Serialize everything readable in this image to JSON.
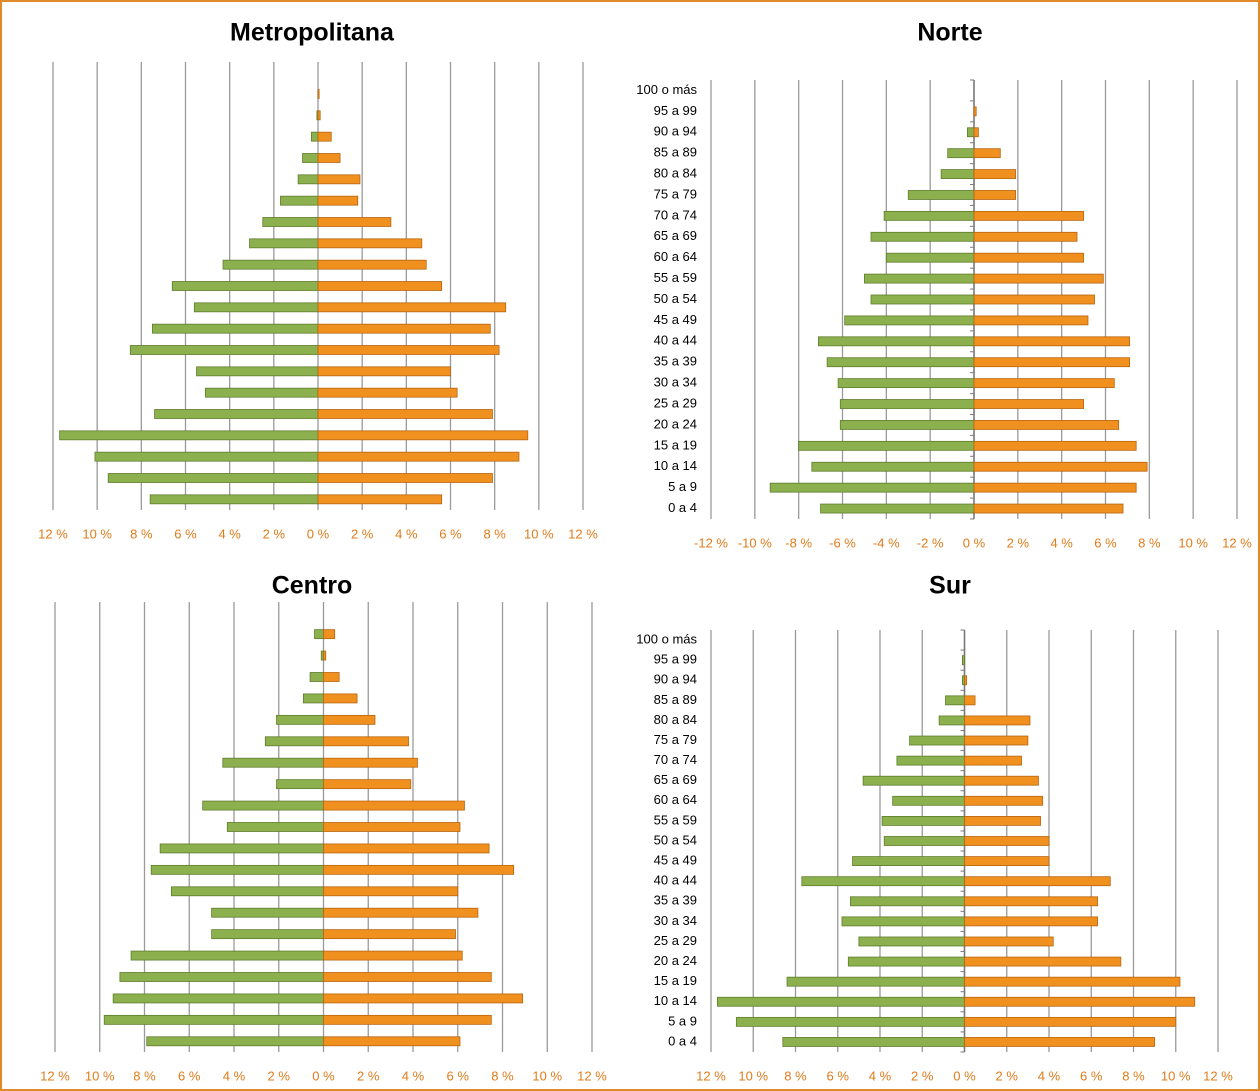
{
  "chart_data": [
    {
      "type": "bar",
      "title": "Metropolitana",
      "categories": [
        null,
        null,
        null,
        null,
        null,
        null,
        null,
        null,
        null,
        null,
        null,
        null,
        null,
        null,
        null,
        null,
        null,
        null,
        null,
        null,
        null
      ],
      "series": [
        {
          "color": "#8db04f",
          "values": [
            -7.6,
            -9.5,
            -10.1,
            -11.7,
            -7.4,
            -5.1,
            -5.5,
            -8.5,
            -7.5,
            -5.6,
            -6.6,
            -4.3,
            -3.1,
            -2.5,
            -1.7,
            -0.9,
            -0.7,
            -0.3,
            -0.05,
            0,
            0
          ]
        },
        {
          "color": "#f0901f",
          "values": [
            5.6,
            7.9,
            9.1,
            9.5,
            7.9,
            6.3,
            6.0,
            8.2,
            7.8,
            8.5,
            5.6,
            4.9,
            4.7,
            3.3,
            1.8,
            1.9,
            1.0,
            0.6,
            0.1,
            0.05,
            0
          ]
        }
      ],
      "xlim": [
        -12,
        12
      ],
      "xticks": [
        {
          "value": -12,
          "label": "12 %"
        },
        {
          "value": -10,
          "label": "10 %"
        },
        {
          "value": -8,
          "label": "8 %"
        },
        {
          "value": -6,
          "label": "6 %"
        },
        {
          "value": -4,
          "label": "4 %"
        },
        {
          "value": -2,
          "label": "2 %"
        },
        {
          "value": 0,
          "label": "0 %"
        },
        {
          "value": 2,
          "label": "2 %"
        },
        {
          "value": 4,
          "label": "4 %"
        },
        {
          "value": 6,
          "label": "6 %"
        },
        {
          "value": 8,
          "label": "8 %"
        },
        {
          "value": 10,
          "label": "10 %"
        },
        {
          "value": 12,
          "label": "12 %"
        }
      ],
      "grid": true
    },
    {
      "type": "bar",
      "title": "Norte",
      "categories": [
        "0 a 4",
        "5 a 9",
        "10 a 14",
        "15 a 19",
        "20 a 24",
        "25 a 29",
        "30 a 34",
        "35 a 39",
        "40 a 44",
        "45 a 49",
        "50 a 54",
        "55 a 59",
        "60 a 64",
        "65 a 69",
        "70 a 74",
        "75 a 79",
        "80 a 84",
        "85 a 89",
        "90 a 94",
        "95 a 99",
        "100 o más"
      ],
      "series": [
        {
          "color": "#8db04f",
          "values": [
            -7.0,
            -9.3,
            -7.4,
            -8.0,
            -6.1,
            -6.1,
            -6.2,
            -6.7,
            -7.1,
            -5.9,
            -4.7,
            -5.0,
            -4.0,
            -4.7,
            -4.1,
            -3.0,
            -1.5,
            -1.2,
            -0.3,
            0,
            0
          ]
        },
        {
          "color": "#f0901f",
          "values": [
            6.8,
            7.4,
            7.9,
            7.4,
            6.6,
            5.0,
            6.4,
            7.1,
            7.1,
            5.2,
            5.5,
            5.9,
            5.0,
            4.7,
            5.0,
            1.9,
            1.9,
            1.2,
            0.2,
            0.1,
            0
          ]
        }
      ],
      "xlim": [
        -12,
        12
      ],
      "xticks": [
        {
          "value": -12,
          "label": "-12 %"
        },
        {
          "value": -10,
          "label": "-10 %"
        },
        {
          "value": -8,
          "label": "-8 %"
        },
        {
          "value": -6,
          "label": "-6 %"
        },
        {
          "value": -4,
          "label": "-4 %"
        },
        {
          "value": -2,
          "label": "-2 %"
        },
        {
          "value": 0,
          "label": "0 %"
        },
        {
          "value": 2,
          "label": "2 %"
        },
        {
          "value": 4,
          "label": "4 %"
        },
        {
          "value": 6,
          "label": "6 %"
        },
        {
          "value": 8,
          "label": "8 %"
        },
        {
          "value": 10,
          "label": "10 %"
        },
        {
          "value": 12,
          "label": "12 %"
        }
      ],
      "grid": true
    },
    {
      "type": "bar",
      "title": "Centro",
      "categories": [
        null,
        null,
        null,
        null,
        null,
        null,
        null,
        null,
        null,
        null,
        null,
        null,
        null,
        null,
        null,
        null,
        null,
        null,
        null,
        null,
        null
      ],
      "series": [
        {
          "color": "#8db04f",
          "values": [
            -7.9,
            -9.8,
            -9.4,
            -9.1,
            -8.6,
            -5.0,
            -5.0,
            -6.8,
            -7.7,
            -7.3,
            -4.3,
            -5.4,
            -2.1,
            -4.5,
            -2.6,
            -2.1,
            -0.9,
            -0.6,
            -0.1,
            -0.4,
            0
          ]
        },
        {
          "color": "#f0901f",
          "values": [
            6.1,
            7.5,
            8.9,
            7.5,
            6.2,
            5.9,
            6.9,
            6.0,
            8.5,
            7.4,
            6.1,
            6.3,
            3.9,
            4.2,
            3.8,
            2.3,
            1.5,
            0.7,
            0.1,
            0.5,
            0
          ]
        }
      ],
      "xlim": [
        -12,
        12
      ],
      "xticks": [
        {
          "value": -12,
          "label": "12 %"
        },
        {
          "value": -10,
          "label": "10 %"
        },
        {
          "value": -8,
          "label": "8 %"
        },
        {
          "value": -6,
          "label": "6 %"
        },
        {
          "value": -4,
          "label": "4 %"
        },
        {
          "value": -2,
          "label": "2 %"
        },
        {
          "value": 0,
          "label": "0 %"
        },
        {
          "value": 2,
          "label": "2 %"
        },
        {
          "value": 4,
          "label": "4 %"
        },
        {
          "value": 6,
          "label": "6 %"
        },
        {
          "value": 8,
          "label": "8 %"
        },
        {
          "value": 10,
          "label": "10 %"
        },
        {
          "value": 12,
          "label": "12 %"
        }
      ],
      "grid": true
    },
    {
      "type": "bar",
      "title": "Sur",
      "categories": [
        "0 a 4",
        "5 a 9",
        "10 a 14",
        "15 a 19",
        "20 a 24",
        "25 a 29",
        "30 a 34",
        "35 a 39",
        "40 a 44",
        "45 a 49",
        "50 a 54",
        "55 a 59",
        "60 a 64",
        "65 a 69",
        "70 a 74",
        "75 a 79",
        "80 a 84",
        "85 a 89",
        "90 a 94",
        "95 a 99",
        "100 o más"
      ],
      "series": [
        {
          "color": "#8db04f",
          "values": [
            -8.6,
            -10.8,
            -11.7,
            -8.4,
            -5.5,
            -5.0,
            -5.8,
            -5.4,
            -7.7,
            -5.3,
            -3.8,
            -3.9,
            -3.4,
            -4.8,
            -3.2,
            -2.6,
            -1.2,
            -0.9,
            -0.1,
            -0.1,
            0
          ]
        },
        {
          "color": "#f0901f",
          "values": [
            9.0,
            10.0,
            10.9,
            10.2,
            7.4,
            4.2,
            6.3,
            6.3,
            6.9,
            4.0,
            4.0,
            3.6,
            3.7,
            3.5,
            2.7,
            3.0,
            3.1,
            0.5,
            0.1,
            0,
            0
          ]
        }
      ],
      "xlim": [
        -12,
        12
      ],
      "xticks": [
        {
          "value": -12,
          "label": "12 %"
        },
        {
          "value": -10,
          "label": "10 %"
        },
        {
          "value": -8,
          "label": "8 %"
        },
        {
          "value": -6,
          "label": "6 %"
        },
        {
          "value": -4,
          "label": "4 %"
        },
        {
          "value": -2,
          "label": "2 %"
        },
        {
          "value": 0,
          "label": "0 %"
        },
        {
          "value": 2,
          "label": "2 %"
        },
        {
          "value": 4,
          "label": "4 %"
        },
        {
          "value": 6,
          "label": "6 %"
        },
        {
          "value": 8,
          "label": "8 %"
        },
        {
          "value": 10,
          "label": "10 %"
        },
        {
          "value": 12,
          "label": "12 %"
        }
      ],
      "grid": true
    }
  ]
}
